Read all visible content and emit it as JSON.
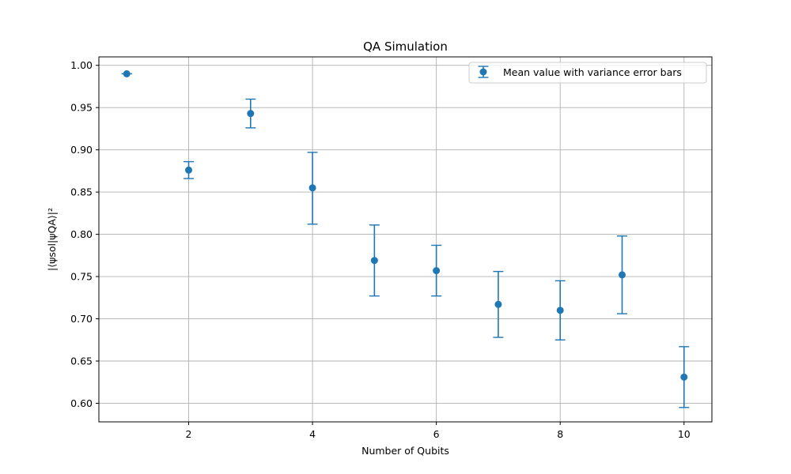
{
  "chart_data": {
    "type": "scatter",
    "title": "QA Simulation",
    "xlabel": "Number of Qubits",
    "ylabel": "|⟨ψsol|ψQA⟩|²",
    "xlim": [
      0.55,
      10.45
    ],
    "ylim": [
      0.578,
      1.01
    ],
    "xticks": [
      2,
      4,
      6,
      8,
      10
    ],
    "yticks": [
      0.6,
      0.65,
      0.7,
      0.75,
      0.8,
      0.85,
      0.9,
      0.95,
      1.0
    ],
    "grid": true,
    "legend_position": "top-right",
    "color": "#1f77b4",
    "series": [
      {
        "name": "Mean value with variance error bars",
        "x": [
          1,
          2,
          3,
          4,
          5,
          6,
          7,
          8,
          9,
          10
        ],
        "y": [
          0.99,
          0.876,
          0.943,
          0.855,
          0.769,
          0.757,
          0.717,
          0.71,
          0.752,
          0.631
        ],
        "error_low": [
          0.99,
          0.866,
          0.926,
          0.812,
          0.727,
          0.727,
          0.678,
          0.675,
          0.706,
          0.595
        ],
        "error_high": [
          0.99,
          0.886,
          0.96,
          0.897,
          0.811,
          0.787,
          0.756,
          0.745,
          0.798,
          0.667
        ]
      }
    ]
  }
}
